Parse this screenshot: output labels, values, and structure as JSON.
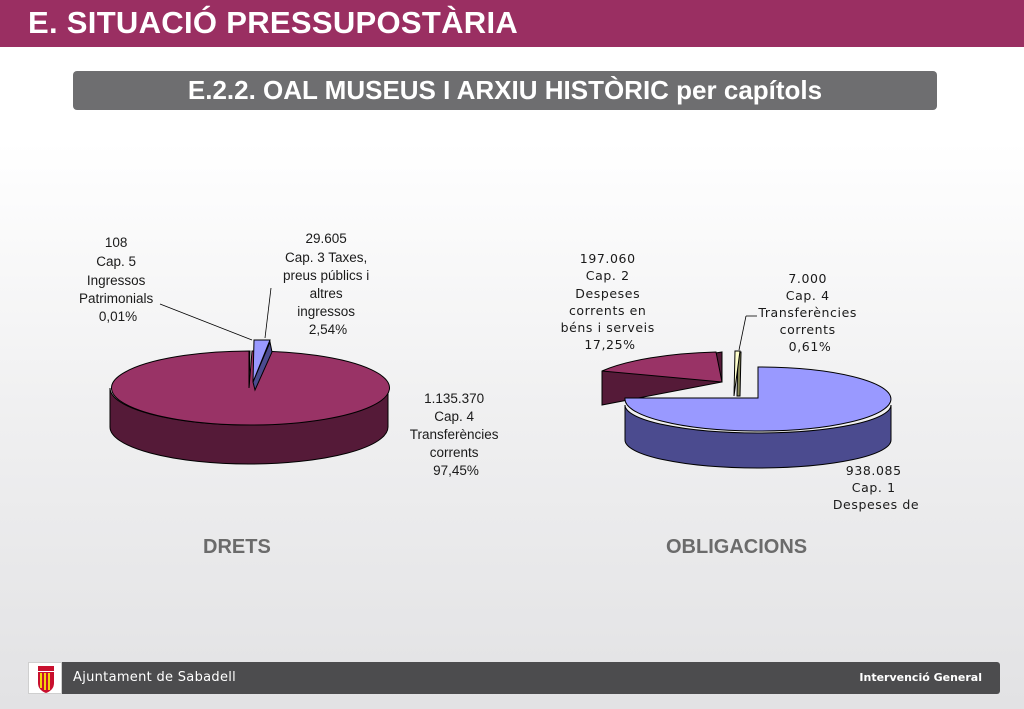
{
  "header": {
    "title": "E. SITUACIÓ PRESSUPOSTÀRIA"
  },
  "subtitle": "E.2.2. OAL MUSEUS I ARXIU HISTÒRIC per capítols",
  "colors": {
    "brand": "#9a2f62",
    "subtitle_bar": "#6e6e70",
    "footer": "#4c4c4e"
  },
  "chart_data": [
    {
      "type": "pie",
      "title": "DRETS",
      "slices": [
        {
          "value": 108,
          "label_lines": [
            "108",
            "Cap. 5",
            "Ingressos",
            "Patrimonials",
            "0,01%"
          ],
          "percent": 0.01,
          "color": "#993366",
          "exploded": false
        },
        {
          "value": 29605,
          "label_lines": [
            "29.605",
            "Cap. 3 Taxes,",
            "preus públics i",
            "altres",
            "ingressos",
            "2,54%"
          ],
          "percent": 2.54,
          "color": "#9999ff",
          "exploded": true
        },
        {
          "value": 1135370,
          "label_lines": [
            "1.135.370",
            "Cap. 4",
            "Transferències",
            "corrents",
            "97,45%"
          ],
          "percent": 97.45,
          "color": "#993366",
          "exploded": false
        }
      ]
    },
    {
      "type": "pie",
      "title": "OBLIGACIONS",
      "slices": [
        {
          "value": 938085,
          "label_lines": [
            "938.085",
            "Cap. 1",
            "Despeses de"
          ],
          "color": "#9999ff",
          "exploded": false
        },
        {
          "value": 197060,
          "label_lines": [
            "197.060",
            "Cap. 2",
            "Despeses",
            "corrents en",
            "béns i serveis",
            "17,25%"
          ],
          "percent": 17.25,
          "color": "#993366",
          "exploded": true
        },
        {
          "value": 7000,
          "label_lines": [
            "7.000",
            "Cap. 4",
            "Transferències",
            "corrents",
            "0,61%"
          ],
          "percent": 0.61,
          "color": "#ffffcc",
          "exploded": true
        }
      ]
    }
  ],
  "footer": {
    "left": "Ajuntament de Sabadell",
    "right": "Intervenció General"
  }
}
